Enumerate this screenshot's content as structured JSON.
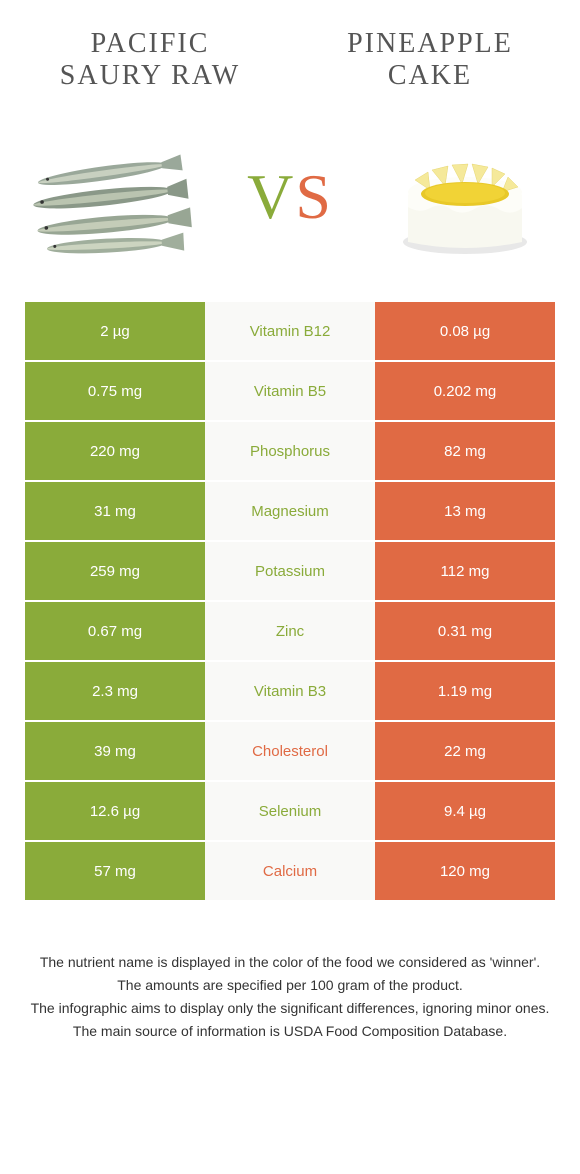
{
  "header": {
    "left_title": "PACIFIC SAURY RAW",
    "right_title": "PINEAPPLE CAKE",
    "vs_v": "V",
    "vs_s": "S"
  },
  "colors": {
    "green": "#8aab3a",
    "orange": "#e06a44",
    "mid_bg": "#f9f9f7"
  },
  "nutrients": [
    {
      "name": "Vitamin B12",
      "left": "2 µg",
      "right": "0.08 µg",
      "winner": "green"
    },
    {
      "name": "Vitamin B5",
      "left": "0.75 mg",
      "right": "0.202 mg",
      "winner": "green"
    },
    {
      "name": "Phosphorus",
      "left": "220 mg",
      "right": "82 mg",
      "winner": "green"
    },
    {
      "name": "Magnesium",
      "left": "31 mg",
      "right": "13 mg",
      "winner": "green"
    },
    {
      "name": "Potassium",
      "left": "259 mg",
      "right": "112 mg",
      "winner": "green"
    },
    {
      "name": "Zinc",
      "left": "0.67 mg",
      "right": "0.31 mg",
      "winner": "green"
    },
    {
      "name": "Vitamin B3",
      "left": "2.3 mg",
      "right": "1.19 mg",
      "winner": "green"
    },
    {
      "name": "Cholesterol",
      "left": "39 mg",
      "right": "22 mg",
      "winner": "orange"
    },
    {
      "name": "Selenium",
      "left": "12.6 µg",
      "right": "9.4 µg",
      "winner": "green"
    },
    {
      "name": "Calcium",
      "left": "57 mg",
      "right": "120 mg",
      "winner": "orange"
    }
  ],
  "footer": {
    "line1": "The nutrient name is displayed in the color of the food we considered as 'winner'.",
    "line2": "The amounts are specified per 100 gram of the product.",
    "line3": "The infographic aims to display only the significant differences, ignoring minor ones.",
    "line4": "The main source of information is USDA Food Composition Database."
  }
}
